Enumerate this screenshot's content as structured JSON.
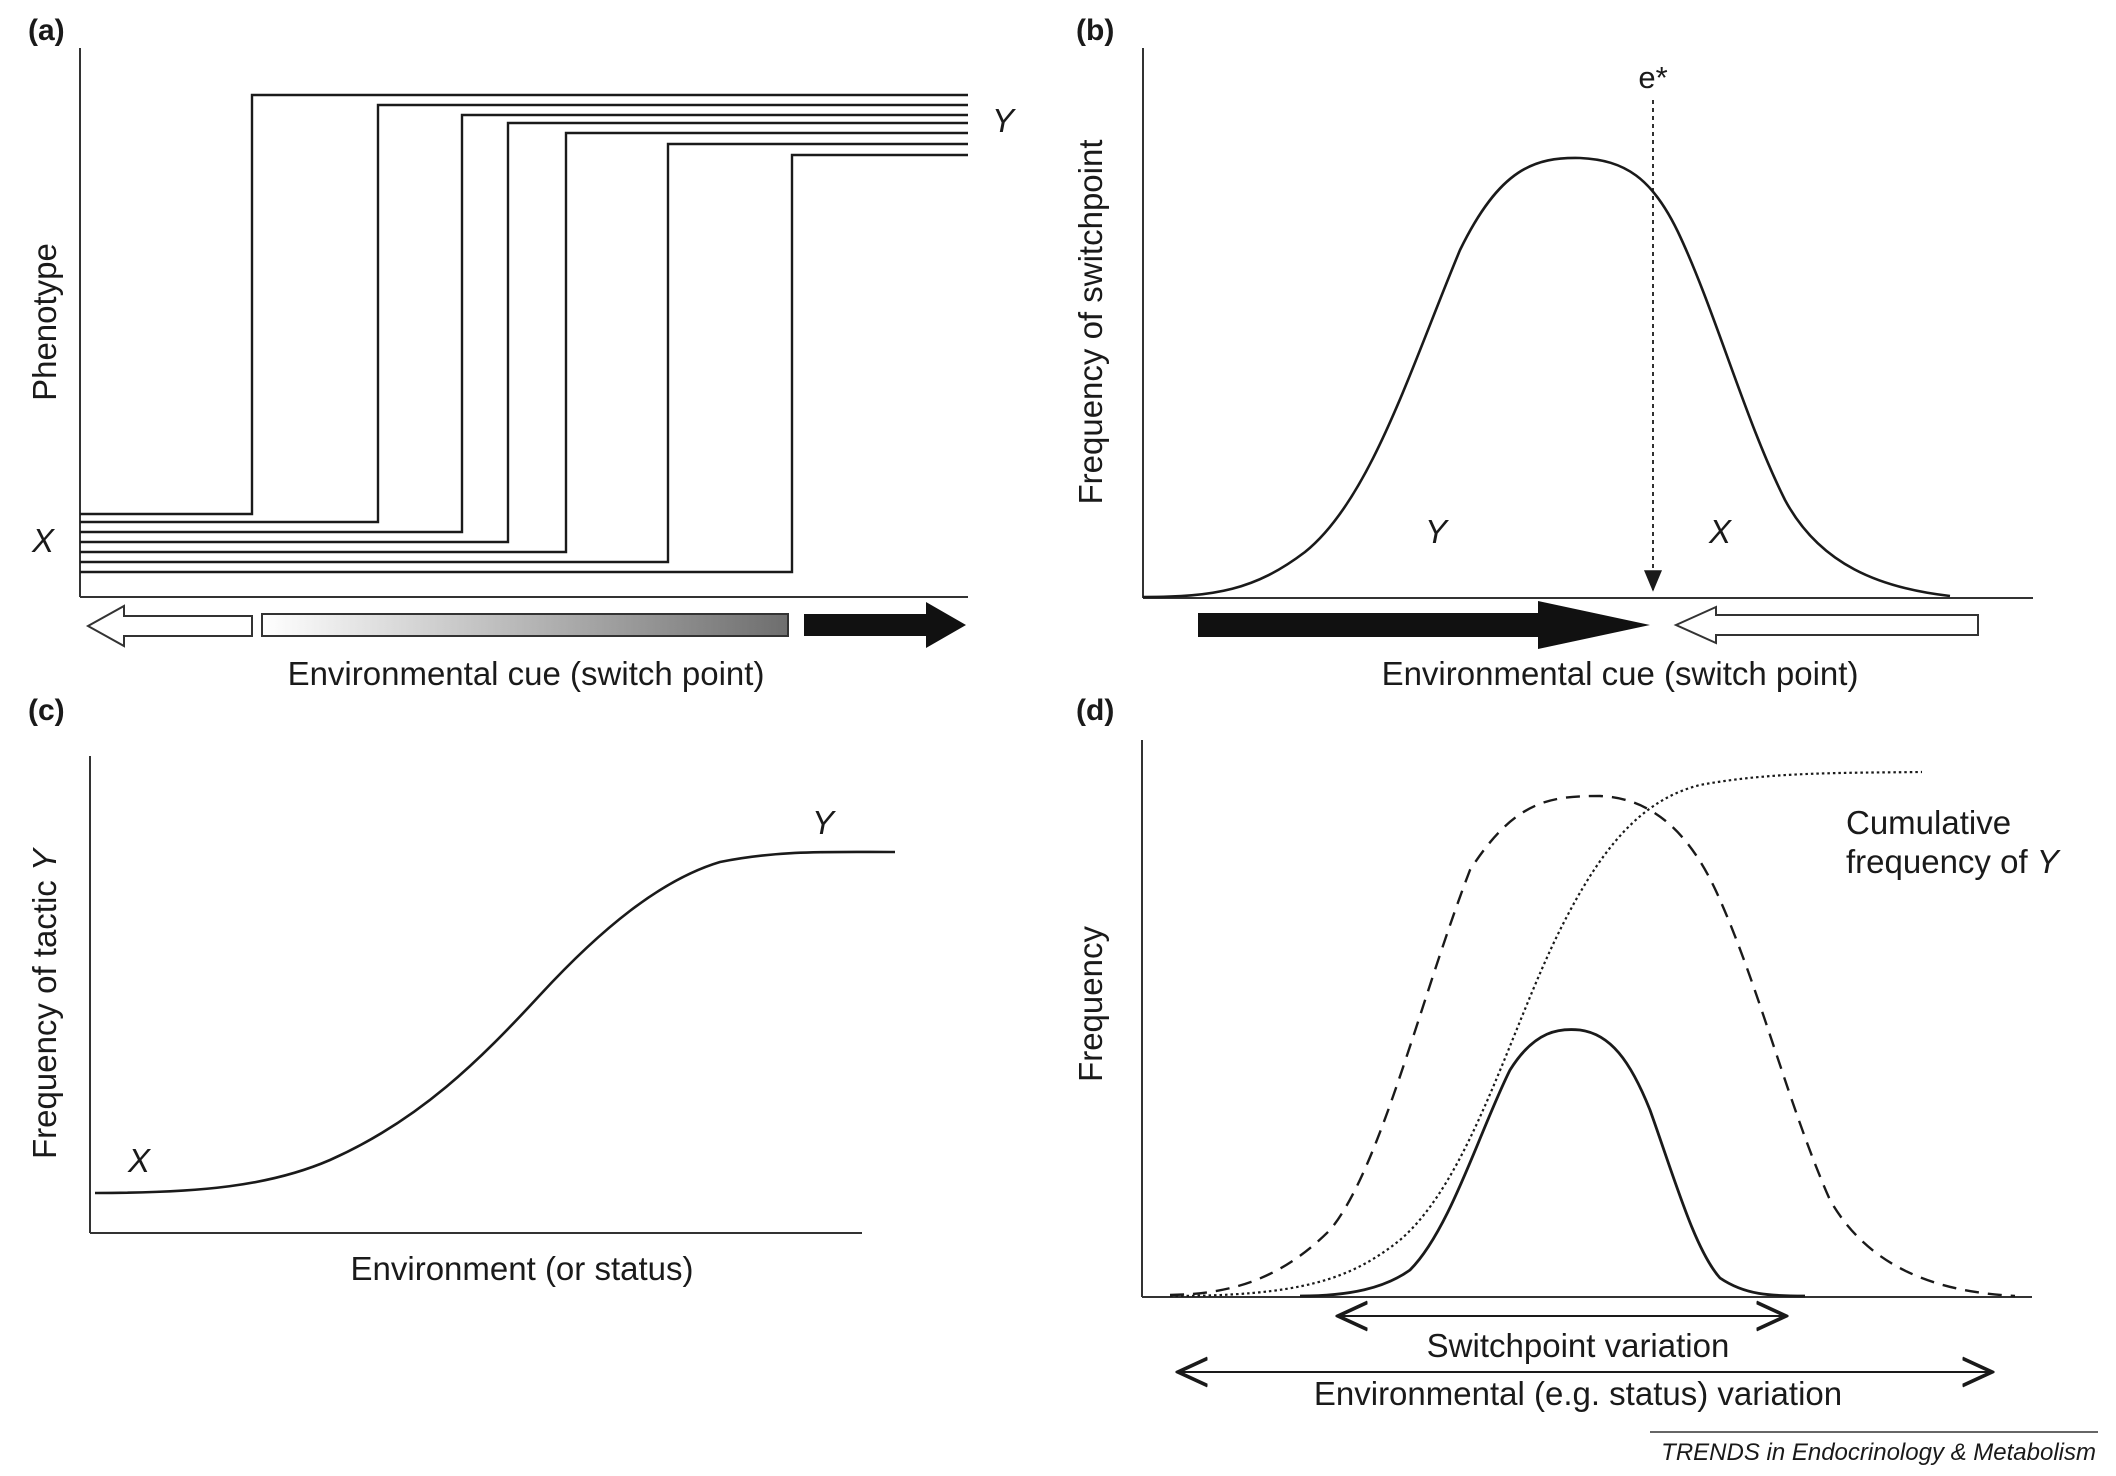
{
  "figure": {
    "source": "TRENDS in Endocrinology & Metabolism",
    "panels": [
      {
        "id": "a",
        "label": "(a)",
        "y_axis_label": "Phenotype",
        "x_axis_label": "Environmental cue (switch point)",
        "low_state_label": "X",
        "high_state_label": "Y"
      },
      {
        "id": "b",
        "label": "(b)",
        "y_axis_label": "Frequency of switchpoint",
        "x_axis_label": "Environmental cue (switch point)",
        "threshold_label": "e*",
        "left_region_label": "Y",
        "right_region_label": "X"
      },
      {
        "id": "c",
        "label": "(c)",
        "y_axis_label_prefix": "Frequency of tactic ",
        "y_axis_label_var": "Y",
        "x_axis_label": "Environment (or status)",
        "low_label": "X",
        "high_label": "Y"
      },
      {
        "id": "d",
        "label": "(d)",
        "y_axis_label": "Frequency",
        "cumulative_label_line1": "Cumulative",
        "cumulative_label_line2_prefix": "frequency of ",
        "cumulative_label_var": "Y",
        "switchpoint_range_label": "Switchpoint variation",
        "environment_range_label": "Environmental (e.g. status) variation"
      }
    ]
  },
  "colors": {
    "line": "#1a1a1a",
    "axis": "#333333",
    "gradient_start": "#ffffff",
    "gradient_end": "#6e6e6e"
  }
}
